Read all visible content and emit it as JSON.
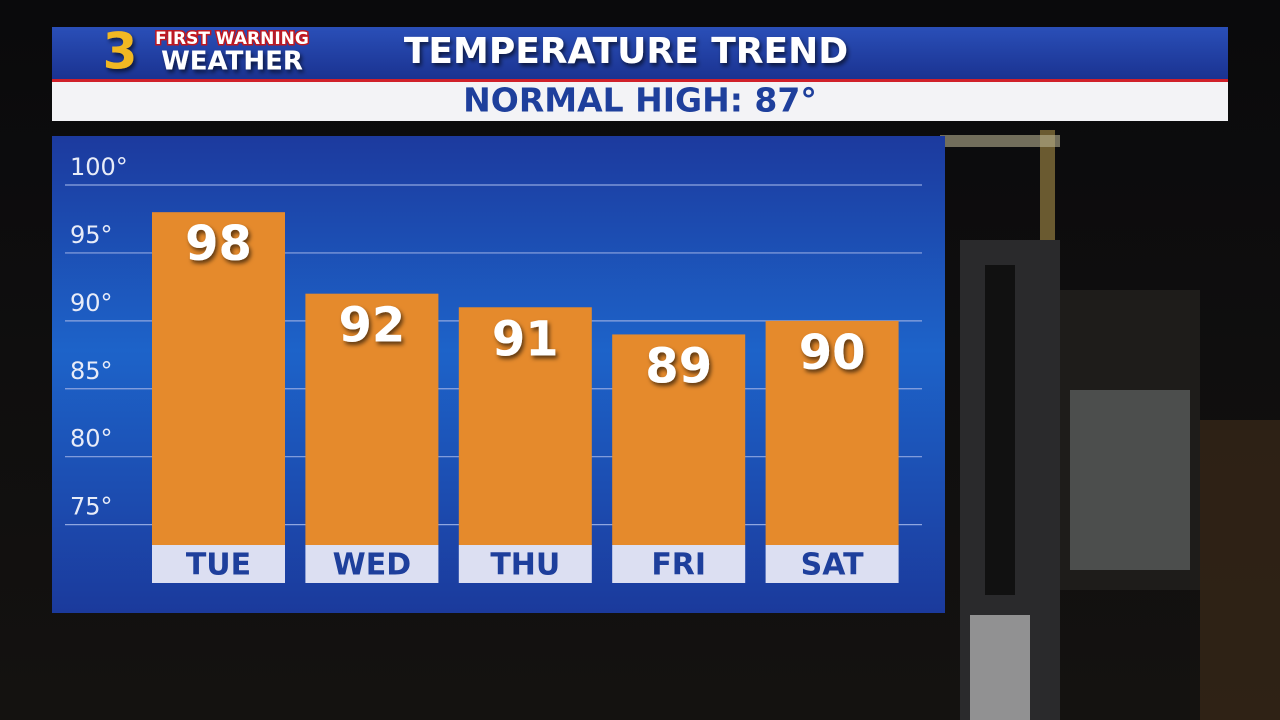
{
  "logo": {
    "number": "3",
    "line1": "FIRST WARNING",
    "line2": "WEATHER"
  },
  "chart_data": {
    "type": "bar",
    "title": "TEMPERATURE TREND",
    "subtitle": "NORMAL HIGH: 87°",
    "categories": [
      "TUE",
      "WED",
      "THU",
      "FRI",
      "SAT"
    ],
    "values": [
      98,
      92,
      91,
      89,
      90
    ],
    "color": "#e58a2c",
    "ylim": [
      73.5,
      100
    ],
    "yticks": [
      {
        "value": 100,
        "label": "100°"
      },
      {
        "value": 95,
        "label": "95°"
      },
      {
        "value": 90,
        "label": "90°"
      },
      {
        "value": 85,
        "label": "85°"
      },
      {
        "value": 80,
        "label": "80°"
      },
      {
        "value": 75,
        "label": "75°"
      }
    ],
    "grid": true
  }
}
